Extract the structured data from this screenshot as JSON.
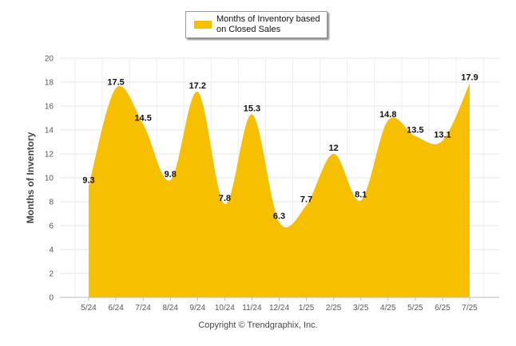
{
  "chart_data": {
    "type": "area",
    "categories": [
      "5/24",
      "6/24",
      "7/24",
      "8/24",
      "9/24",
      "10/24",
      "11/24",
      "12/24",
      "1/25",
      "2/25",
      "3/25",
      "4/25",
      "5/25",
      "6/25",
      "7/25"
    ],
    "series": [
      {
        "name": "Months of Inventory based on Closed Sales",
        "values": [
          9.3,
          17.5,
          14.5,
          9.8,
          17.2,
          7.8,
          15.3,
          6.3,
          7.7,
          12,
          8.1,
          14.8,
          13.5,
          13.1,
          17.9
        ],
        "color": "#f6c000"
      }
    ],
    "data_labels": [
      "9.3",
      "17.5",
      "14.5",
      "9.8",
      "17.2",
      "7.8",
      "15.3",
      "6.3",
      "7.7",
      "12",
      "8.1",
      "14.8",
      "13.5",
      "13.1",
      "17.9"
    ],
    "ylabel": "Months of Inventory",
    "ylim": [
      0,
      20
    ],
    "yticks": [
      "0",
      "2",
      "4",
      "6",
      "8",
      "10",
      "12",
      "14",
      "16",
      "18",
      "20"
    ],
    "grid": true,
    "legend_position": "top-center"
  },
  "legend": {
    "label": "Months of Inventory based on Closed Sales"
  },
  "footer": {
    "copyright": "Copyright © Trendgraphix, Inc."
  }
}
